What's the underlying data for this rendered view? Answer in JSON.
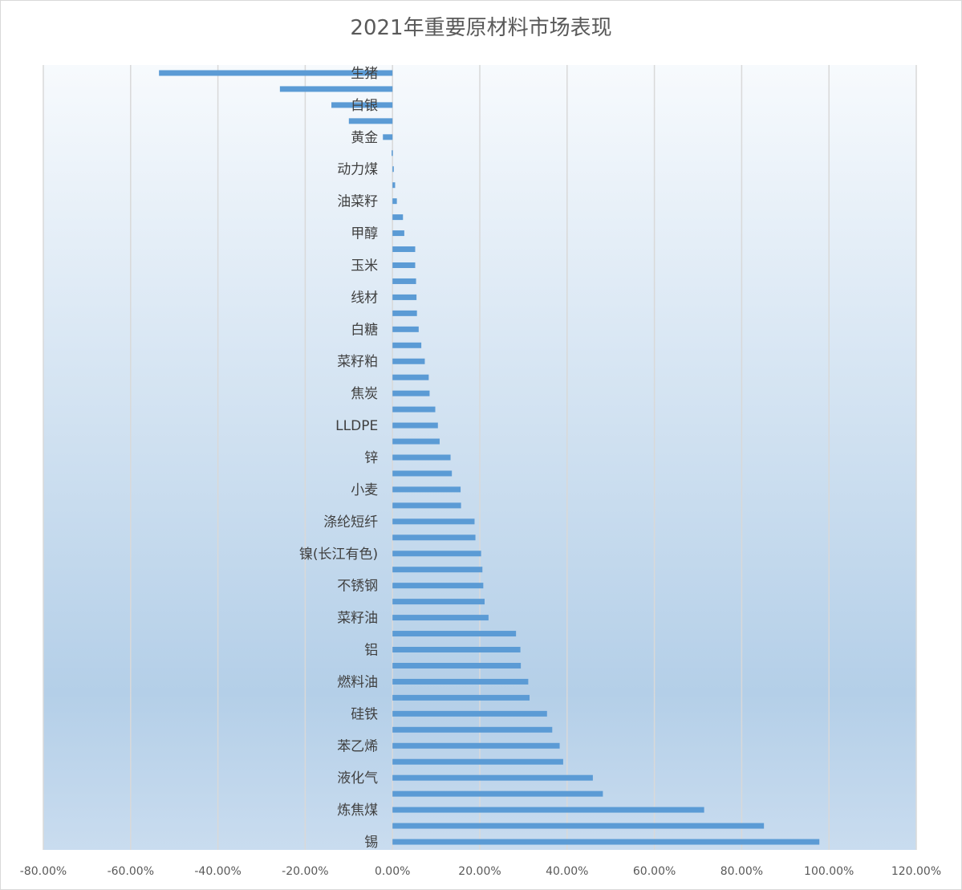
{
  "chart_data": {
    "type": "bar",
    "orientation": "horizontal",
    "title": "2021年重要原材料市场表现",
    "xlabel": "",
    "ylabel": "",
    "xlim": [
      -0.8,
      1.2
    ],
    "x_ticks": [
      "-80.00%",
      "-60.00%",
      "-40.00%",
      "-20.00%",
      "0.00%",
      "20.00%",
      "40.00%",
      "60.00%",
      "80.00%",
      "100.00%",
      "120.00%"
    ],
    "grid": "vertical",
    "legend": "none",
    "bar_color": "#5b9bd5",
    "categories": [
      "生猪",
      "",
      "白银",
      "",
      "黄金",
      "",
      "动力煤",
      "",
      "油菜籽",
      "",
      "甲醇",
      "",
      "玉米",
      "",
      "线材",
      "",
      "白糖",
      "",
      "菜籽粕",
      "",
      "焦炭",
      "",
      "LLDPE",
      "",
      "锌",
      "",
      "小麦",
      "",
      "涤纶短纤",
      "",
      "镍(长江有色)",
      "",
      "不锈钢",
      "",
      "菜籽油",
      "",
      "铝",
      "",
      "燃料油",
      "",
      "硅铁",
      "",
      "苯乙烯",
      "",
      "液化气",
      "",
      "炼焦煤",
      "",
      "锡"
    ],
    "values": [
      -0.535,
      -0.258,
      -0.14,
      -0.1,
      -0.022,
      -0.002,
      0.003,
      0.006,
      0.01,
      0.024,
      0.027,
      0.052,
      0.052,
      0.054,
      0.055,
      0.056,
      0.06,
      0.066,
      0.074,
      0.083,
      0.085,
      0.098,
      0.104,
      0.108,
      0.133,
      0.136,
      0.156,
      0.157,
      0.188,
      0.19,
      0.203,
      0.206,
      0.208,
      0.211,
      0.22,
      0.283,
      0.293,
      0.294,
      0.311,
      0.314,
      0.354,
      0.366,
      0.383,
      0.391,
      0.459,
      0.482,
      0.714,
      0.851,
      0.978
    ]
  }
}
